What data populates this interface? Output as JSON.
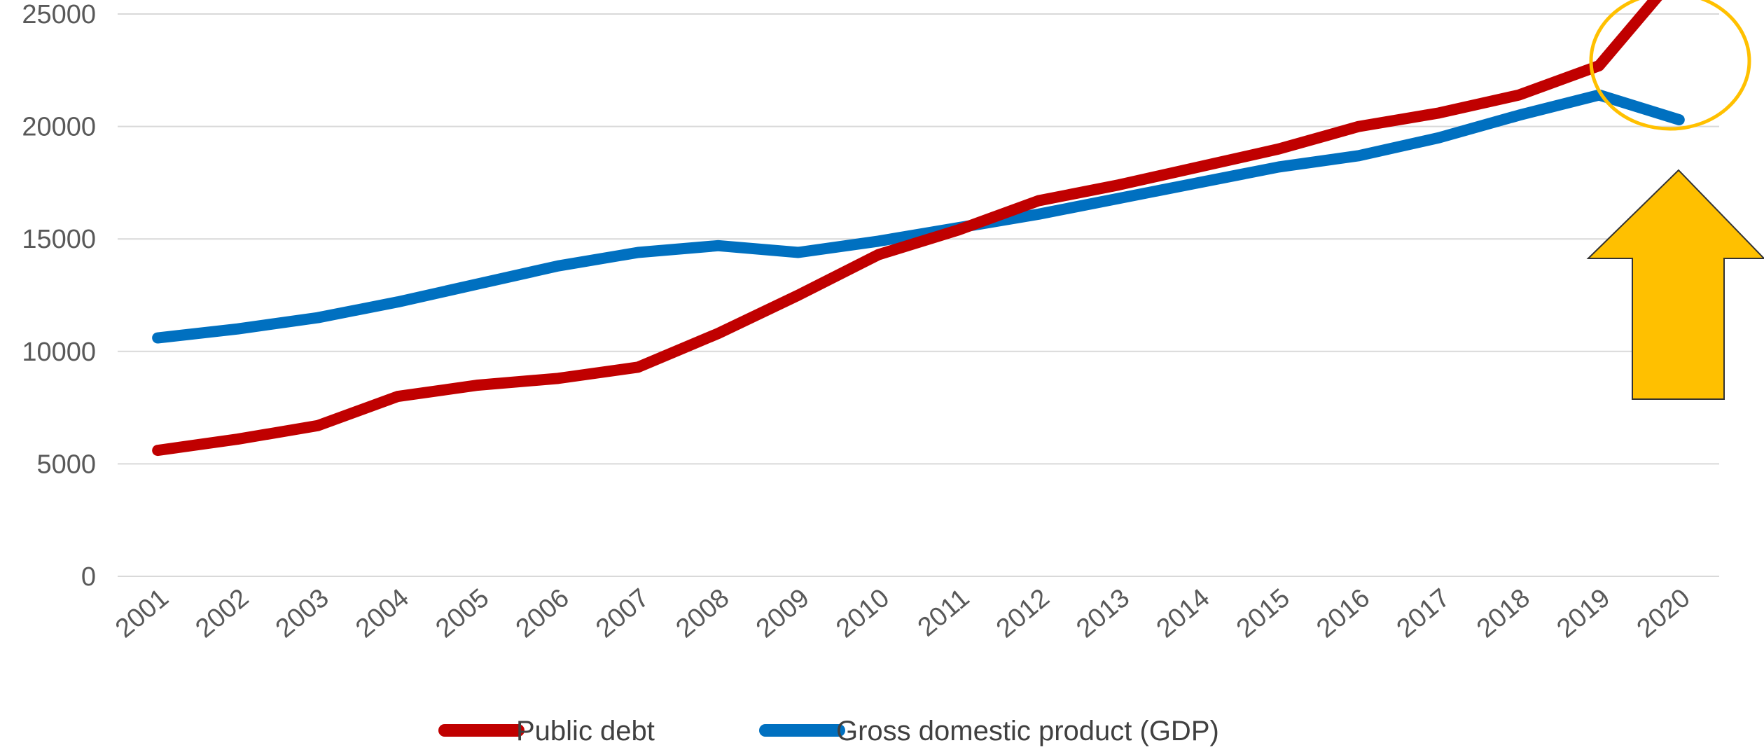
{
  "chart_data": {
    "type": "line",
    "x": [
      "2001",
      "2002",
      "2003",
      "2004",
      "2005",
      "2006",
      "2007",
      "2008",
      "2009",
      "2010",
      "2011",
      "2012",
      "2013",
      "2014",
      "2015",
      "2016",
      "2017",
      "2018",
      "2019",
      "2020"
    ],
    "series": [
      {
        "name": "Public debt",
        "color": "#c00000",
        "values": [
          5600,
          6100,
          6700,
          8000,
          8500,
          8800,
          9300,
          10800,
          12500,
          14300,
          15400,
          16700,
          17400,
          18200,
          19000,
          20000,
          20600,
          21400,
          22700,
          26900
        ]
      },
      {
        "name": "Gross domestic product (GDP)",
        "color": "#0070c0",
        "values": [
          10600,
          11000,
          11500,
          12200,
          13000,
          13800,
          14400,
          14700,
          14400,
          14900,
          15500,
          16100,
          16800,
          17500,
          18200,
          18700,
          19500,
          20500,
          21400,
          20300
        ]
      }
    ],
    "ylim": [
      0,
      25000
    ],
    "yticks": [
      "0",
      "5000",
      "10000",
      "15000",
      "20000",
      "25000"
    ],
    "grid": true,
    "legend": "bottom",
    "title": "",
    "xlabel": "",
    "ylabel": ""
  },
  "annotations": {
    "highlight_color": "#ffc000",
    "highlight_circle_target": "2019-2020",
    "arrow_icon": "up-arrow-icon"
  }
}
